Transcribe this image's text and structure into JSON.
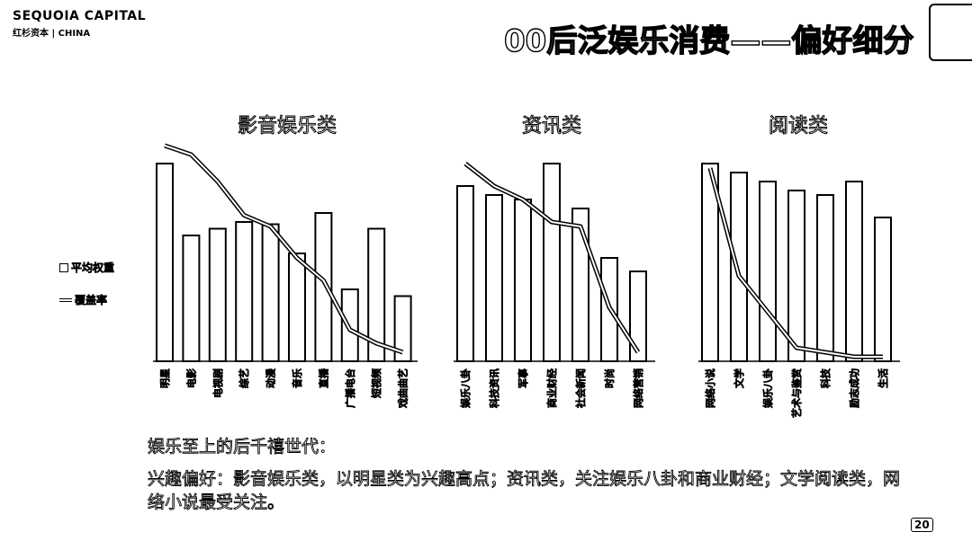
{
  "header": {
    "logo_main": "SEQUOIA CAPITAL",
    "logo_sub": "红杉资本 | CHINA",
    "title": "00后泛娱乐消费——偏好细分"
  },
  "legend": {
    "bar_label": "平均权重",
    "line_label": "覆盖率"
  },
  "chart_data": [
    {
      "type": "bar",
      "title": "影音娱乐类",
      "categories": [
        "明星",
        "电影",
        "电视剧",
        "综艺",
        "动漫",
        "音乐",
        "直播",
        "广播电台",
        "短视频",
        "戏曲曲艺"
      ],
      "series": [
        {
          "name": "平均权重",
          "values": [
            88,
            56,
            59,
            62,
            61,
            48,
            66,
            32,
            59,
            29
          ]
        },
        {
          "name": "覆盖率",
          "type": "line",
          "values": [
            96,
            92,
            80,
            65,
            60,
            46,
            36,
            14,
            8,
            4
          ]
        }
      ],
      "ylim": [
        0,
        100
      ]
    },
    {
      "type": "bar",
      "title": "资讯类",
      "categories": [
        "娱乐八卦",
        "科技资讯",
        "军事",
        "商业财经",
        "社会新闻",
        "时尚",
        "网络营销"
      ],
      "series": [
        {
          "name": "平均权重",
          "values": [
            78,
            74,
            72,
            88,
            68,
            46,
            40
          ]
        },
        {
          "name": "覆盖率",
          "type": "line",
          "values": [
            88,
            78,
            72,
            62,
            60,
            24,
            4
          ]
        }
      ],
      "ylim": [
        0,
        100
      ]
    },
    {
      "type": "bar",
      "title": "阅读类",
      "categories": [
        "网络小说",
        "文学",
        "娱乐八卦",
        "艺术与鉴赏",
        "科技",
        "励志成功",
        "生活"
      ],
      "series": [
        {
          "name": "平均权重",
          "values": [
            88,
            84,
            80,
            76,
            74,
            80,
            64
          ]
        },
        {
          "name": "覆盖率",
          "type": "line",
          "values": [
            86,
            38,
            22,
            6,
            4,
            2,
            2
          ]
        }
      ],
      "ylim": [
        0,
        100
      ]
    }
  ],
  "caption": {
    "line1": "娱乐至上的后千禧世代：",
    "line2": "兴趣偏好：影音娱乐类，以明星类为兴趣高点；资讯类，关注娱乐八卦和商业财经；文学阅读类，网络小说最受关注。"
  },
  "page_number": "20"
}
